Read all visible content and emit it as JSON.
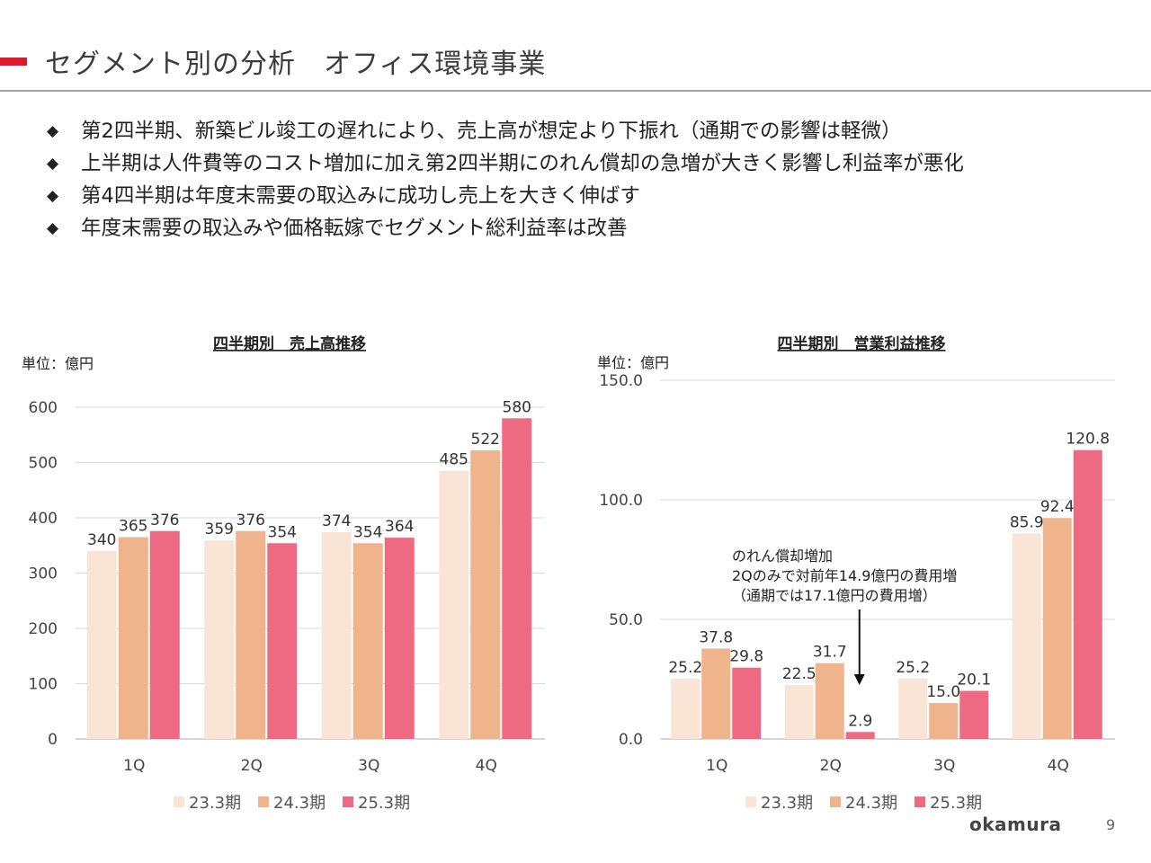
{
  "page": {
    "title": "セグメント別の分析　オフィス環境事業",
    "bullets": [
      "第2四半期、新築ビル竣工の遅れにより、売上高が想定より下振れ（通期での影響は軽微）",
      "上半期は人件費等のコスト増加に加え第2四半期にのれん償却の急増が大きく影響し利益率が悪化",
      "第4四半期は年度末需要の取込みに成功し売上を大きく伸ばす",
      "年度末需要の取込みや価格転嫁でセグメント総利益率は改善"
    ],
    "bullet_mark": "◆",
    "logo": "okamura",
    "page_number": "9"
  },
  "chart_data": [
    {
      "type": "bar",
      "title": "四半期別　売上高推移",
      "unit_label": "単位：億円",
      "categories": [
        "1Q",
        "2Q",
        "3Q",
        "4Q"
      ],
      "series": [
        {
          "name": "23.3期",
          "values": [
            340,
            359,
            374,
            485
          ],
          "color": "#f9e4d6"
        },
        {
          "name": "24.3期",
          "values": [
            365,
            376,
            354,
            522
          ],
          "color": "#efb48c"
        },
        {
          "name": "25.3期",
          "values": [
            376,
            354,
            364,
            580
          ],
          "color": "#ee6a82"
        }
      ],
      "ylim": [
        0,
        600
      ],
      "yticks": [
        "0",
        "100",
        "200",
        "300",
        "400",
        "500",
        "600"
      ],
      "data_labels": [
        [
          "340",
          "359",
          "374",
          "485"
        ],
        [
          "365",
          "376",
          "354",
          "522"
        ],
        [
          "376",
          "354",
          "364",
          "580"
        ]
      ],
      "grid": true,
      "legend": "bottom"
    },
    {
      "type": "bar",
      "title": "四半期別　営業利益推移",
      "unit_label": "単位：億円",
      "categories": [
        "1Q",
        "2Q",
        "3Q",
        "4Q"
      ],
      "series": [
        {
          "name": "23.3期",
          "values": [
            25.2,
            22.5,
            25.2,
            85.9
          ],
          "color": "#f9e4d6"
        },
        {
          "name": "24.3期",
          "values": [
            37.8,
            31.7,
            15.0,
            92.4
          ],
          "color": "#efb48c"
        },
        {
          "name": "25.3期",
          "values": [
            29.8,
            2.9,
            20.1,
            120.8
          ],
          "color": "#ee6a82"
        }
      ],
      "ylim": [
        0,
        150
      ],
      "yticks": [
        "0.0",
        "50.0",
        "100.0",
        "150.0"
      ],
      "data_labels": [
        [
          "25.2",
          "22.5",
          "25.2",
          "85.9"
        ],
        [
          "37.8",
          "31.7",
          "15.0",
          "92.4"
        ],
        [
          "29.8",
          "2.9",
          "20.1",
          "120.8"
        ]
      ],
      "grid": true,
      "legend": "bottom",
      "annotation": {
        "lines": [
          "のれん償却増加",
          "2Qのみで対前年14.9億円の費用増",
          "（通期では17.1億円の費用増）"
        ],
        "points_to": {
          "category": "2Q",
          "series": "25.3期"
        }
      }
    }
  ]
}
